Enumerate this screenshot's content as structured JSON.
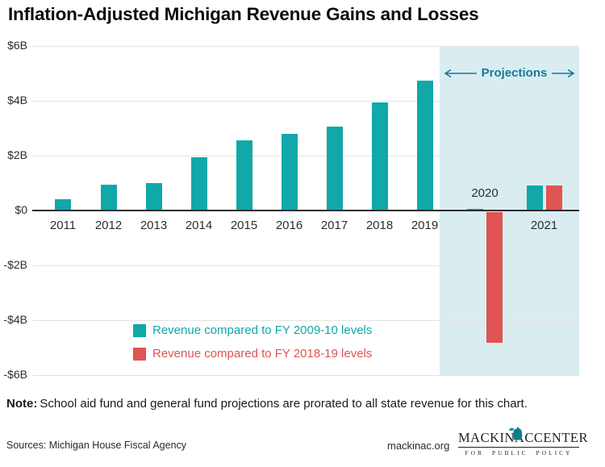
{
  "title": "Inflation-Adjusted Michigan Revenue Gains and Losses",
  "chart_data": {
    "type": "bar",
    "categories": [
      "2011",
      "2012",
      "2013",
      "2014",
      "2015",
      "2016",
      "2017",
      "2018",
      "2019",
      "2020",
      "2021"
    ],
    "series": [
      {
        "name": "Revenue compared to FY 2009-10 levels",
        "color": "#10a8a8",
        "values": [
          0.4,
          0.95,
          1.0,
          1.95,
          2.55,
          2.8,
          3.05,
          3.95,
          4.75,
          0.05,
          0.9
        ]
      },
      {
        "name": "Revenue compared to FY 2018-19 levels",
        "color": "#e05453",
        "values": [
          null,
          null,
          null,
          null,
          null,
          null,
          null,
          null,
          null,
          -4.75,
          0.9
        ]
      }
    ],
    "title": "Inflation-Adjusted Michigan Revenue Gains and Losses",
    "xlabel": "",
    "ylabel": "",
    "units": "billions of dollars",
    "ylim": [
      -6,
      6
    ],
    "grid": true,
    "legend_position": "bottom-left",
    "yticks": [
      {
        "value": 6,
        "label": "$6B"
      },
      {
        "value": 4,
        "label": "$4B"
      },
      {
        "value": 2,
        "label": "$2B"
      },
      {
        "value": 0,
        "label": "$0"
      },
      {
        "value": -2,
        "label": "-$2B"
      },
      {
        "value": -4,
        "label": "-$4B"
      },
      {
        "value": -6,
        "label": "-$6B"
      }
    ],
    "above_axis_labels": [
      "2020"
    ],
    "projection": {
      "label": "Projections",
      "categories": [
        "2020",
        "2021"
      ],
      "region_color": "#d9edf0",
      "label_color": "#17789e"
    }
  },
  "note": {
    "label": "Note:",
    "text": "School aid fund and general fund projections are prorated to all state revenue for this chart."
  },
  "footer": {
    "sources": "Sources: Michigan House Fiscal Agency",
    "site": "mackinac.org",
    "logo": {
      "word1": "MACKINAC",
      "word2": "CENTER",
      "tagline": "FOR PUBLIC POLICY",
      "icon": "michigan-state-icon",
      "icon_color": "#0c7f8e",
      "text_color": "#1a232b"
    }
  }
}
